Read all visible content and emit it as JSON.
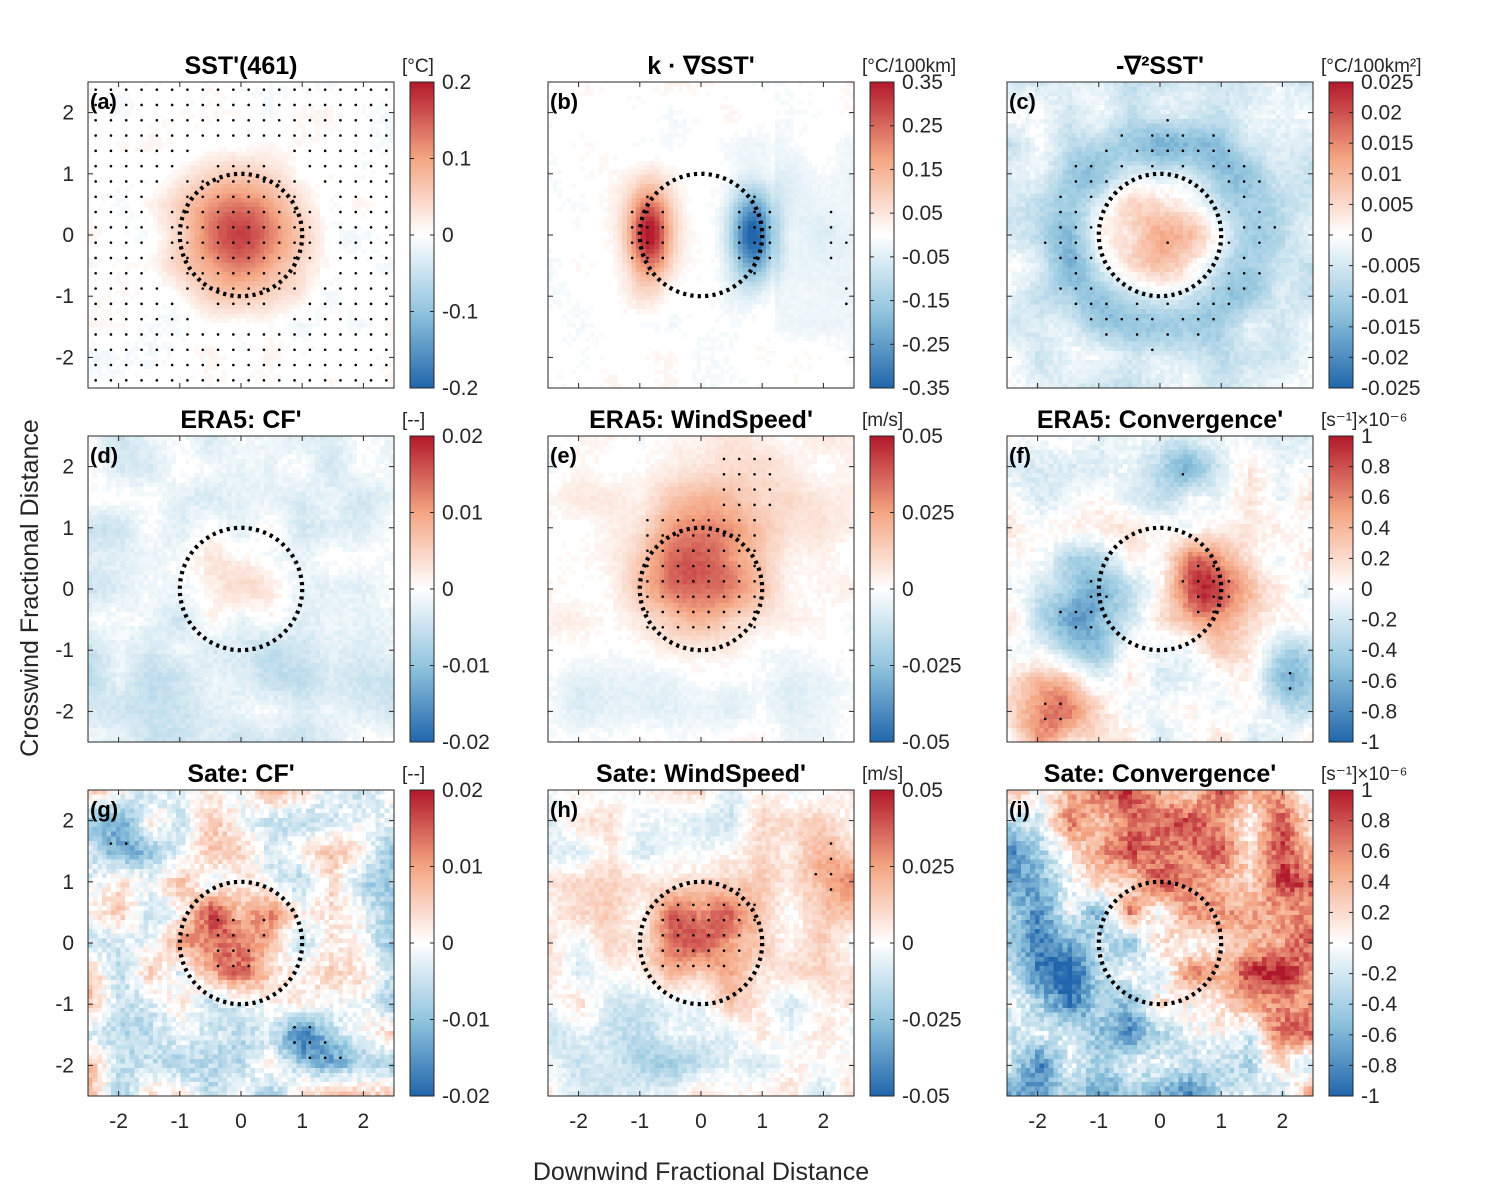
{
  "chart_data": {
    "type": "heatmap",
    "xlabel": "Downwind Fractional Distance",
    "ylabel": "Crosswind Fractional Distance",
    "xlim": [
      -2.5,
      2.5
    ],
    "ylim": [
      -2.5,
      2.5
    ],
    "xticks": [
      -2,
      -1,
      0,
      1,
      2
    ],
    "yticks": [
      -2,
      -1,
      0,
      1,
      2
    ],
    "circle_radius": 1,
    "colormap": [
      "#2166ac",
      "#92c5de",
      "#ffffff",
      "#f4a582",
      "#b2182b"
    ],
    "panels": [
      {
        "label": "(a)",
        "title_text": "SST'(461)",
        "unit_text": "[°C]",
        "pattern": "blob",
        "noise": 0.04,
        "center": [
          0,
          0
        ],
        "amplitude": 0.16,
        "clim": [
          -0.2,
          0.2
        ],
        "cbar_ticks": [
          "0.2",
          "0.1",
          "0",
          "-0.1",
          "-0.2"
        ],
        "cbar_tick_values": [
          0.2,
          0.1,
          0,
          -0.1,
          -0.2
        ],
        "stipple": "outside_rings"
      },
      {
        "label": "(b)",
        "title_text": "k · ∇SST'",
        "unit_text": "[°C/100km]",
        "pattern": "dipole_x",
        "noise": 0.04,
        "center": [
          0,
          0
        ],
        "amplitude": 0.28,
        "clim": [
          -0.35,
          0.35
        ],
        "cbar_ticks": [
          "0.35",
          "0.25",
          "0.15",
          "0.05",
          "-0.05",
          "-0.15",
          "-0.25",
          "-0.35"
        ],
        "cbar_tick_values": [
          0.35,
          0.25,
          0.15,
          0.05,
          -0.05,
          -0.15,
          -0.25,
          -0.35
        ],
        "stipple": "strong_or_edges"
      },
      {
        "label": "(c)",
        "title_text": "-∇²SST'",
        "unit_text": "[°C/100km²]",
        "pattern": "ring",
        "noise": 0.1,
        "center": [
          0,
          0
        ],
        "amplitude": 0.01,
        "clim": [
          -0.025,
          0.025
        ],
        "cbar_ticks": [
          "0.025",
          "0.02",
          "0.015",
          "0.01",
          "0.005",
          "0",
          "-0.005",
          "-0.01",
          "-0.015",
          "-0.02",
          "-0.025"
        ],
        "cbar_tick_values": [
          0.025,
          0.02,
          0.015,
          0.01,
          0.005,
          0,
          -0.005,
          -0.01,
          -0.015,
          -0.02,
          -0.025
        ],
        "stipple": "sparse_ring"
      },
      {
        "label": "(d)",
        "title_text": "ERA5: CF'",
        "unit_text": "[--]",
        "pattern": "weak_blob",
        "noise": 0.08,
        "center": [
          0,
          0.2
        ],
        "amplitude": 0.005,
        "clim": [
          -0.02,
          0.02
        ],
        "cbar_ticks": [
          "0.02",
          "0.01",
          "0",
          "-0.01",
          "-0.02"
        ],
        "cbar_tick_values": [
          0.02,
          0.01,
          0,
          -0.01,
          -0.02
        ],
        "stipple": "none"
      },
      {
        "label": "(e)",
        "title_text": "ERA5: WindSpeed'",
        "unit_text": "[m/s]",
        "pattern": "blob_wide",
        "noise": 0.06,
        "center": [
          0,
          0.2
        ],
        "amplitude": 0.04,
        "clim": [
          -0.05,
          0.05
        ],
        "cbar_ticks": [
          "0.05",
          "0.025",
          "0",
          "-0.025",
          "-0.05"
        ],
        "cbar_tick_values": [
          0.05,
          0.025,
          0,
          -0.025,
          -0.05
        ],
        "stipple": "center_box"
      },
      {
        "label": "(f)",
        "title_text": "ERA5: Convergence'",
        "unit_text": "[s⁻¹]×10⁻⁶",
        "pattern": "dipole_shift",
        "noise": 0.12,
        "center": [
          0.7,
          0
        ],
        "amplitude": 0.8,
        "clim": [
          -1,
          1
        ],
        "cbar_ticks": [
          "1",
          "0.8",
          "0.6",
          "0.4",
          "0.2",
          "0",
          "-0.2",
          "-0.4",
          "-0.6",
          "-0.8",
          "-1"
        ],
        "cbar_tick_values": [
          1,
          0.8,
          0.6,
          0.4,
          0.2,
          0,
          -0.2,
          -0.4,
          -0.6,
          -0.8,
          -1
        ],
        "stipple": "strong"
      },
      {
        "label": "(g)",
        "title_text": "Sate: CF'",
        "unit_text": "[--]",
        "pattern": "patchy_blob",
        "noise": 0.25,
        "center": [
          0,
          0.1
        ],
        "amplitude": 0.014,
        "clim": [
          -0.02,
          0.02
        ],
        "cbar_ticks": [
          "0.02",
          "0.01",
          "0",
          "-0.01",
          "-0.02"
        ],
        "cbar_tick_values": [
          0.02,
          0.01,
          0,
          -0.01,
          -0.02
        ],
        "stipple": "strong"
      },
      {
        "label": "(h)",
        "title_text": "Sate: WindSpeed'",
        "unit_text": "[m/s]",
        "pattern": "blob_plume",
        "noise": 0.15,
        "center": [
          0,
          0.3
        ],
        "amplitude": 0.04,
        "clim": [
          -0.05,
          0.05
        ],
        "cbar_ticks": [
          "0.05",
          "0.025",
          "0",
          "-0.025",
          "-0.05"
        ],
        "cbar_tick_values": [
          0.05,
          0.025,
          0,
          -0.025,
          -0.05
        ],
        "stipple": "center_box_wide"
      },
      {
        "label": "(i)",
        "title_text": "Sate: Convergence'",
        "unit_text": "[s⁻¹]×10⁻⁶",
        "pattern": "diagonal",
        "noise": 0.3,
        "center": [
          0,
          0
        ],
        "amplitude": 0.6,
        "clim": [
          -1,
          1
        ],
        "cbar_ticks": [
          "1",
          "0.8",
          "0.6",
          "0.4",
          "0.2",
          "0",
          "-0.2",
          "-0.4",
          "-0.6",
          "-0.8",
          "-1"
        ],
        "cbar_tick_values": [
          1,
          0.8,
          0.6,
          0.4,
          0.2,
          0,
          -0.2,
          -0.4,
          -0.6,
          -0.8,
          -1
        ],
        "stipple": "none"
      }
    ]
  }
}
